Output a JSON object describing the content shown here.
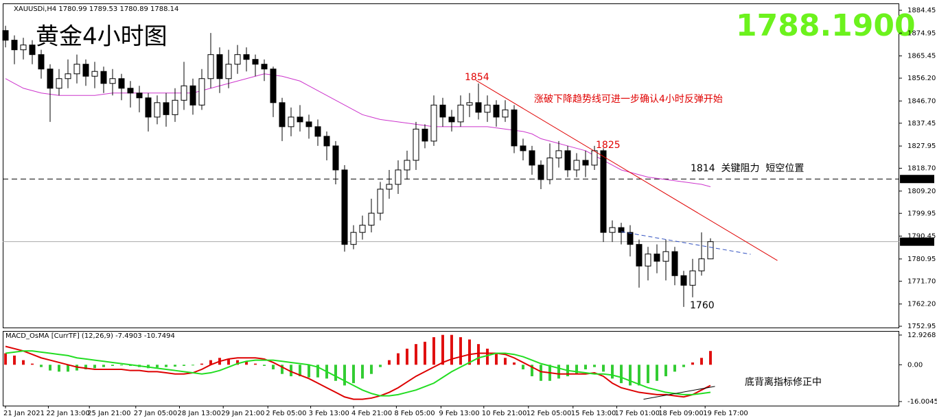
{
  "chart_data": [
    {
      "type": "candlestick",
      "header": "XAUUSDi,H4  1780.99 1789.53 1780.89 1788.14",
      "title": "黄金4小时图",
      "price": "1788.1900",
      "ylim": [
        1752.4,
        1887.3
      ],
      "yticks": [
        1884.45,
        1874.95,
        1865.45,
        {
          "value": 1856.2,
          "label": "1856.20"
        },
        {
          "value": 1846.7,
          "label": "1846.70"
        },
        1837.45,
        1827.95,
        {
          "value": 1818.7,
          "label": "1818.70"
        },
        {
          "value": 1809.2,
          "label": "1809.20"
        },
        1799.95,
        1790.45,
        1780.95,
        {
          "value": 1771.7,
          "label": "1771.70"
        },
        {
          "value": 1762.2,
          "label": "1762.20"
        },
        1752.95
      ],
      "candles": {
        "open": [
          1876,
          1872,
          1868,
          1870,
          1866,
          1860,
          1852,
          1856,
          1858,
          1862,
          1857,
          1859,
          1854,
          1856,
          1852,
          1850,
          1848,
          1840,
          1846,
          1841,
          1847,
          1853,
          1845,
          1856,
          1866,
          1856,
          1862,
          1866,
          1864,
          1862,
          1860,
          1846,
          1836,
          1840,
          1838,
          1836,
          1832,
          1828,
          1818,
          1787,
          1792,
          1795,
          1800,
          1810,
          1812,
          1818,
          1822,
          1835,
          1830,
          1845,
          1840,
          1838,
          1845,
          1846,
          1842,
          1845,
          1840,
          1843,
          1828,
          1826,
          1820,
          1814,
          1823,
          1826,
          1818,
          1822,
          1820,
          1826,
          1792,
          1794,
          1792,
          1787,
          1778,
          1783,
          1780,
          1784,
          1774,
          1770,
          1776,
          1780.99
        ],
        "high": [
          1878,
          1874,
          1873,
          1872,
          1868,
          1862,
          1860,
          1864,
          1866,
          1864,
          1863,
          1861,
          1860,
          1858,
          1855,
          1853,
          1850,
          1849,
          1850,
          1852,
          1863,
          1856,
          1860,
          1875,
          1869,
          1868,
          1870,
          1869,
          1866,
          1864,
          1861,
          1848,
          1844,
          1845,
          1841,
          1839,
          1834,
          1830,
          1820,
          1795,
          1799,
          1806,
          1813,
          1818,
          1822,
          1826,
          1838,
          1837,
          1849,
          1848,
          1843,
          1849,
          1850,
          1854,
          1849,
          1847,
          1847,
          1845,
          1831,
          1828,
          1822,
          1829,
          1830,
          1828,
          1825,
          1826,
          1828,
          1827,
          1797,
          1796,
          1795,
          1789,
          1786,
          1787,
          1789,
          1786,
          1776,
          1781,
          1792,
          1789.53
        ],
        "low": [
          1869,
          1862,
          1864,
          1862,
          1856,
          1838,
          1849,
          1852,
          1854,
          1853,
          1852,
          1850,
          1849,
          1847,
          1844,
          1842,
          1834,
          1837,
          1836,
          1838,
          1843,
          1841,
          1843,
          1852,
          1850,
          1852,
          1858,
          1859,
          1857,
          1855,
          1840,
          1830,
          1832,
          1834,
          1831,
          1828,
          1822,
          1812,
          1784,
          1785,
          1789,
          1792,
          1797,
          1806,
          1808,
          1814,
          1818,
          1827,
          1828,
          1836,
          1834,
          1836,
          1840,
          1839,
          1838,
          1836,
          1838,
          1825,
          1822,
          1816,
          1810,
          1812,
          1819,
          1815,
          1815,
          1815,
          1818,
          1788,
          1788,
          1787,
          1782,
          1769,
          1772,
          1775,
          1772,
          1770,
          1761,
          1765,
          1774,
          1780.89
        ],
        "close": [
          1872,
          1868,
          1870,
          1866,
          1860,
          1852,
          1856,
          1858,
          1862,
          1857,
          1859,
          1854,
          1856,
          1852,
          1850,
          1848,
          1840,
          1846,
          1841,
          1847,
          1853,
          1845,
          1856,
          1866,
          1856,
          1862,
          1866,
          1864,
          1862,
          1860,
          1846,
          1836,
          1840,
          1838,
          1836,
          1832,
          1828,
          1818,
          1787,
          1792,
          1795,
          1800,
          1810,
          1812,
          1818,
          1822,
          1835,
          1830,
          1845,
          1840,
          1838,
          1845,
          1846,
          1842,
          1845,
          1840,
          1843,
          1828,
          1826,
          1820,
          1814,
          1823,
          1826,
          1818,
          1822,
          1820,
          1826,
          1792,
          1794,
          1792,
          1787,
          1778,
          1783,
          1780,
          1784,
          1774,
          1770,
          1776,
          1781,
          1788.14
        ]
      },
      "ma": {
        "color": "#cc33cc",
        "values": [
          1856,
          1854,
          1852,
          1851,
          1850,
          1849.5,
          1849,
          1849,
          1849,
          1849,
          1849,
          1849.5,
          1850,
          1850,
          1850,
          1850,
          1850,
          1850,
          1850,
          1850,
          1850,
          1850,
          1851,
          1852,
          1853,
          1854,
          1855,
          1856,
          1857,
          1858,
          1857.5,
          1857,
          1856,
          1855,
          1853,
          1851,
          1849,
          1847,
          1845,
          1843,
          1841,
          1840,
          1839,
          1838.5,
          1838,
          1837.5,
          1837,
          1836.5,
          1836,
          1836,
          1836,
          1836,
          1836,
          1836,
          1836,
          1835.5,
          1835,
          1834.5,
          1834,
          1833,
          1831,
          1830,
          1829,
          1828,
          1827,
          1826,
          1824,
          1822,
          1820,
          1818,
          1817,
          1816,
          1815,
          1814.5,
          1814,
          1813.5,
          1813,
          1812.5,
          1812,
          1811
        ]
      },
      "hlines": [
        {
          "value": 1814.22,
          "dashed": true
        },
        {
          "value": 1788.14,
          "dashed": false
        }
      ],
      "trendlines": [
        {
          "x": [
            52.7,
            86.5
          ],
          "y": [
            1855.35,
            1780.3
          ],
          "color": "#e00000",
          "dashed": false
        },
        {
          "x": [
            69,
            83.5
          ],
          "y": [
            1792.3,
            1782.9
          ],
          "color": "#3050c0",
          "dashed": true
        }
      ],
      "annotations": [
        "1854",
        "1825",
        "涨破下降趋势线可进一步确认4小时反弹开始",
        "1814  关键阻力  短空位置",
        "1760"
      ]
    },
    {
      "type": "macd",
      "header": "MACD_OsMA [CurrTF] (12,26,9) -7.4903 -10.7494",
      "ylim": [
        -17.8,
        14.7
      ],
      "yticks": [
        12.9268,
        {
          "value": 0,
          "label": "0.00"
        },
        -16.0045
      ],
      "up_color": "#e01010",
      "down_color": "#33cc33",
      "values": [
        5,
        4,
        2,
        0.5,
        -1,
        -2.5,
        -3,
        -3,
        -2.5,
        -2,
        -1.5,
        -1,
        -0.5,
        -0.3,
        -0.5,
        -1,
        -1.5,
        -1.2,
        -1,
        -0.8,
        -0.5,
        -0.3,
        0.5,
        2,
        3,
        2.5,
        2,
        1.5,
        0.5,
        -0.5,
        -2,
        -4,
        -5,
        -5,
        -5.5,
        -5.5,
        -6,
        -7,
        -9,
        -8,
        -6,
        -4,
        -1,
        2,
        5,
        7,
        9,
        10,
        12,
        13,
        13,
        12,
        11,
        9,
        7,
        5,
        3,
        1,
        -2,
        -5,
        -7,
        -7,
        -6,
        -5,
        -4,
        -2,
        -1,
        -3,
        -6,
        -8,
        -9,
        -9,
        -8,
        -7,
        -5,
        -3,
        -1,
        1,
        3,
        6
      ],
      "lines": [
        {
          "color": "#dd0000",
          "values": [
            8,
            7,
            6,
            4.5,
            3,
            2,
            1,
            0,
            -1,
            -1.5,
            -2,
            -2,
            -2,
            -2,
            -2.5,
            -2.5,
            -3,
            -3,
            -3.5,
            -4,
            -4,
            -3.5,
            -2,
            0,
            1.5,
            2.5,
            3,
            3,
            3,
            2.5,
            1,
            -1,
            -3,
            -4.5,
            -6,
            -8,
            -10,
            -12,
            -14,
            -15,
            -15,
            -14.5,
            -13.5,
            -12,
            -10,
            -7.5,
            -5,
            -3,
            -1,
            1,
            2.5,
            3.5,
            4.5,
            5,
            5,
            5,
            4.5,
            3,
            1,
            -1,
            -3,
            -3.5,
            -4,
            -4,
            -4,
            -4,
            -3.5,
            -5,
            -8,
            -10,
            -11,
            -12,
            -12.5,
            -13,
            -13,
            -13.5,
            -14,
            -13,
            -11,
            -9
          ]
        },
        {
          "color": "#22dd22",
          "values": [
            5,
            5.5,
            6,
            6,
            5.5,
            5,
            4.5,
            4,
            3,
            2.5,
            2,
            1.5,
            1,
            0.5,
            0,
            -0.5,
            -1,
            -1.5,
            -2,
            -2.5,
            -3,
            -3.5,
            -4,
            -3.5,
            -2.5,
            -1,
            0.5,
            1.5,
            2,
            2,
            2,
            1.5,
            1,
            0.5,
            0,
            -1,
            -3,
            -5,
            -7,
            -9,
            -11,
            -12.5,
            -13.5,
            -13.5,
            -13,
            -12,
            -11,
            -9.5,
            -8,
            -5.5,
            -3,
            -1,
            1,
            3,
            4,
            5,
            5,
            4.5,
            3.5,
            2,
            0.5,
            -0.5,
            -1.5,
            -2.5,
            -3,
            -3.5,
            -4,
            -4,
            -4.5,
            -5.5,
            -7,
            -8.5,
            -10,
            -11,
            -12,
            -12.5,
            -13,
            -13,
            -12.5,
            -12
          ]
        }
      ],
      "trendlines": [
        {
          "x": [
            71.5,
            79.5
          ],
          "y": [
            -15,
            -9.4
          ],
          "color": "#000000",
          "dashed": false
        }
      ],
      "annotations": [
        "底背离指标修正中"
      ],
      "xticks": [
        {
          "value": 0,
          "label": "21 Jan 2021"
        },
        {
          "value": 4.8,
          "label": "22 Jan 13:00"
        },
        {
          "value": 9.4,
          "label": "25 Jan 21:00"
        },
        {
          "value": 14.6,
          "label": "27 Jan 05:00"
        },
        {
          "value": 19.5,
          "label": "28 Jan 13:00"
        },
        {
          "value": 24.4,
          "label": "29 Jan 21:00"
        },
        {
          "value": 29.4,
          "label": "2 Feb 05:00"
        },
        {
          "value": 34.2,
          "label": "3 Feb 13:00"
        },
        {
          "value": 39,
          "label": "4 Feb 21:00"
        },
        {
          "value": 43.8,
          "label": "8 Feb 05:00"
        },
        {
          "value": 48.8,
          "label": "9 Feb 13:00"
        },
        {
          "value": 53.6,
          "label": "10 Feb 21:00"
        },
        {
          "value": 58.6,
          "label": "12 Feb 05:00"
        },
        {
          "value": 63.6,
          "label": "15 Feb 13:00"
        },
        {
          "value": 68.5,
          "label": "17 Feb 01:00"
        },
        {
          "value": 73.4,
          "label": "18 Feb 09:00"
        },
        {
          "value": 78.4,
          "label": "19 Feb 17:00"
        }
      ]
    }
  ]
}
